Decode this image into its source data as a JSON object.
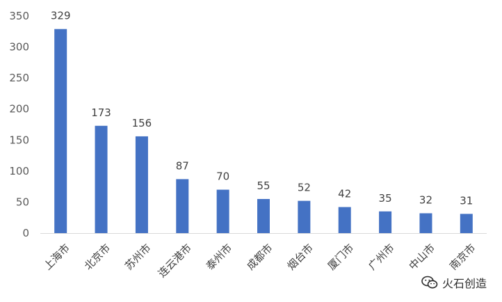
{
  "chart_data": {
    "type": "bar",
    "categories": [
      "上海市",
      "北京市",
      "苏州市",
      "连云港市",
      "泰州市",
      "成都市",
      "烟台市",
      "厦门市",
      "广州市",
      "中山市",
      "南京市"
    ],
    "values": [
      329,
      173,
      156,
      87,
      70,
      55,
      52,
      42,
      35,
      32,
      31
    ],
    "title": "",
    "xlabel": "",
    "ylabel": "",
    "ylim": [
      0,
      350
    ],
    "yticks": [
      0,
      50,
      100,
      150,
      200,
      250,
      300,
      350
    ],
    "grid": false,
    "bar_color": "#4472C4",
    "data_labels": true
  },
  "watermark": {
    "text": "火石创造",
    "icon": "wechat-icon"
  }
}
